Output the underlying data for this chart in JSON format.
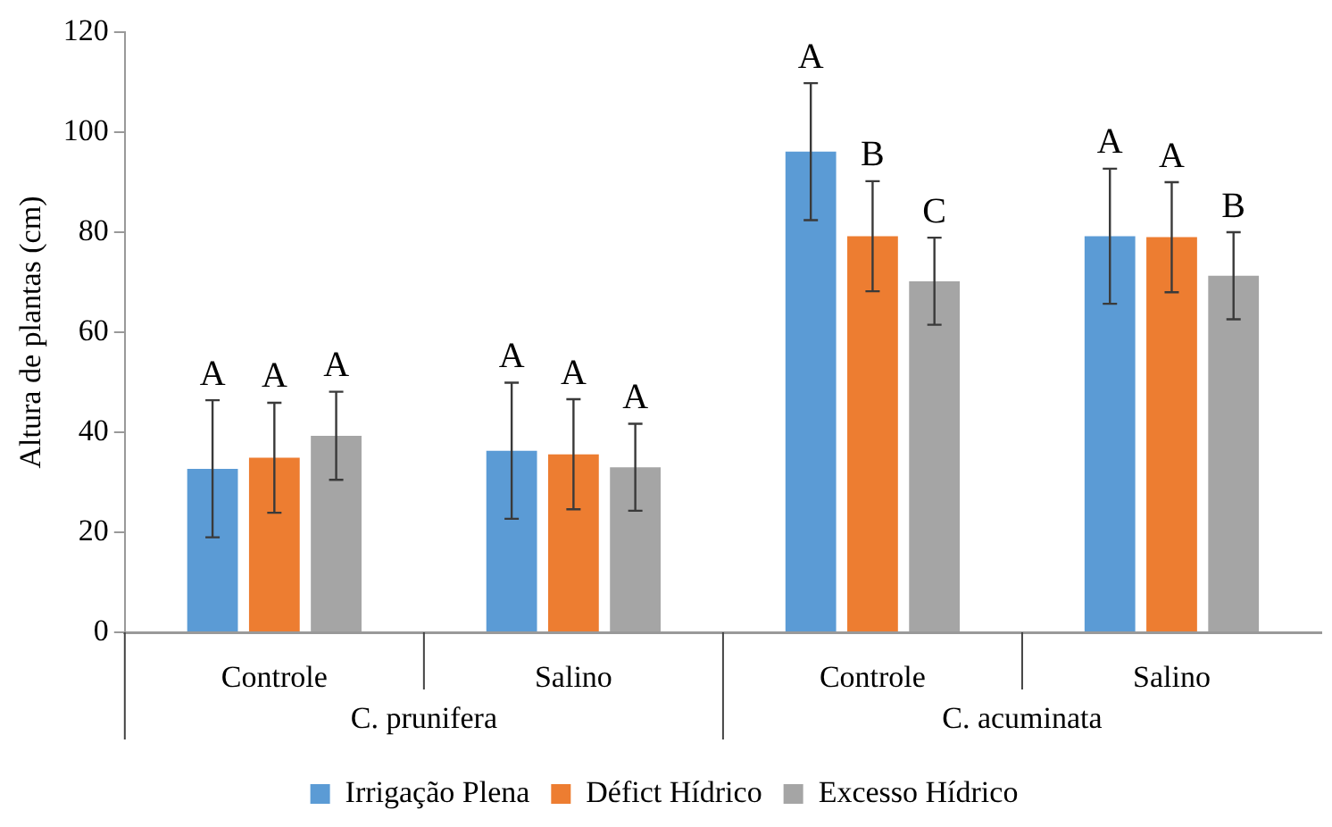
{
  "chart_data": {
    "type": "bar",
    "ylabel": "Altura de plantas (cm)",
    "categories": [
      "Controle",
      "Salino",
      "Controle",
      "Salino"
    ],
    "annotations": [
      "C. prunifera",
      "C. acuminata"
    ],
    "series": [
      {
        "name": "Irrigação Plena",
        "color": "#5b9bd5",
        "values": [
          32.7,
          36.3,
          96.1,
          79.2
        ],
        "errors": [
          13.7,
          13.6,
          13.7,
          13.5
        ],
        "value_labels": [
          "A",
          "A",
          "A",
          "A"
        ]
      },
      {
        "name": "Défict Hídrico",
        "color": "#ed7d31",
        "values": [
          34.9,
          35.6,
          79.2,
          79
        ],
        "errors": [
          11,
          11,
          11,
          11
        ],
        "value_labels": [
          "A",
          "A",
          "B",
          "A"
        ]
      },
      {
        "name": "Excesso Hídrico",
        "color": "#a5a5a5",
        "values": [
          39.3,
          33,
          70.2,
          71.3
        ],
        "errors": [
          8.8,
          8.7,
          8.7,
          8.7
        ],
        "value_labels": [
          "A",
          "A",
          "C",
          "B"
        ]
      }
    ],
    "ylim": [
      0,
      120
    ],
    "yticks": [
      0,
      20,
      40,
      60,
      80,
      100,
      120
    ],
    "grid": false,
    "legend": "bottom"
  }
}
